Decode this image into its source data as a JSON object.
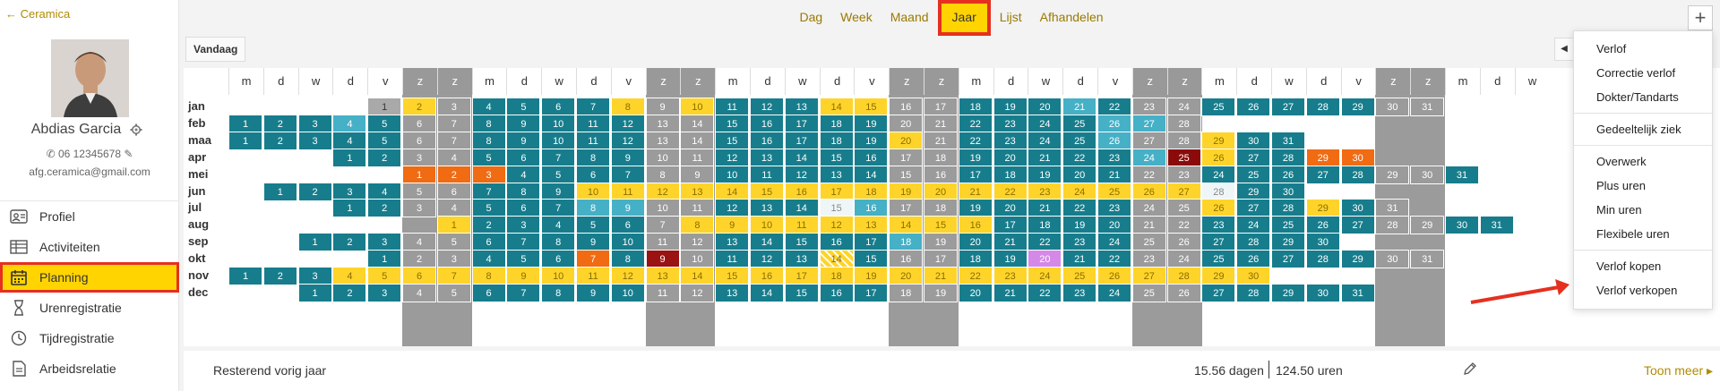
{
  "sidebar": {
    "back_label": "← Ceramica",
    "user_name": "Abdias Garcia",
    "phone": "06 12345678",
    "email": "afg.ceramica@gmail.com",
    "nav": [
      {
        "label": "Profiel",
        "icon": "profile-card-icon"
      },
      {
        "label": "Activiteiten",
        "icon": "table-icon"
      },
      {
        "label": "Planning",
        "icon": "calendar-icon",
        "active": true
      },
      {
        "label": "Urenregistratie",
        "icon": "hourglass-icon"
      },
      {
        "label": "Tijdregistratie",
        "icon": "clock-icon"
      },
      {
        "label": "Arbeidsrelatie",
        "icon": "document-icon"
      }
    ]
  },
  "topbar": {
    "tabs": [
      "Dag",
      "Week",
      "Maand",
      "Jaar",
      "Lijst",
      "Afhandelen"
    ],
    "active_tab": "Jaar",
    "plus_label": "+"
  },
  "toolbar": {
    "today_label": "Vandaag",
    "prev_label": "◀"
  },
  "calendar": {
    "weekday_headers": [
      "m",
      "d",
      "w",
      "d",
      "v",
      "z",
      "z",
      "m",
      "d",
      "w",
      "d",
      "v",
      "z",
      "z",
      "m",
      "d",
      "w",
      "d",
      "v",
      "z",
      "z",
      "m",
      "d",
      "w",
      "d",
      "v",
      "z",
      "z",
      "m",
      "d",
      "w",
      "d",
      "v",
      "z",
      "z",
      "m",
      "d",
      "w"
    ],
    "months": [
      "jan",
      "feb",
      "maa",
      "apr",
      "mei",
      "jun",
      "jul",
      "aug",
      "sep",
      "okt",
      "nov",
      "dec"
    ],
    "colors": {
      "teal": "#177d8c",
      "gray": "#9b9b9b",
      "yellow": "#ffd42a",
      "orange": "#f06b12",
      "dark_red": "#8b0b0b",
      "light_teal": "#45b0c6",
      "pink": "#d488e8"
    }
  },
  "footer": {
    "remaining_label": "Resterend vorig jaar",
    "remaining_days": "15.56 dagen",
    "remaining_hours": "124.50 uren",
    "more_label": "Toon meer ▸"
  },
  "dropdown": {
    "groups": [
      [
        "Verlof",
        "Correctie verlof",
        "Dokter/Tandarts"
      ],
      [
        "Gedeeltelijk ziek"
      ],
      [
        "Overwerk",
        "Plus uren",
        "Min uren",
        "Flexibele uren"
      ],
      [
        "Verlof kopen",
        "Verlof verkopen"
      ]
    ]
  }
}
